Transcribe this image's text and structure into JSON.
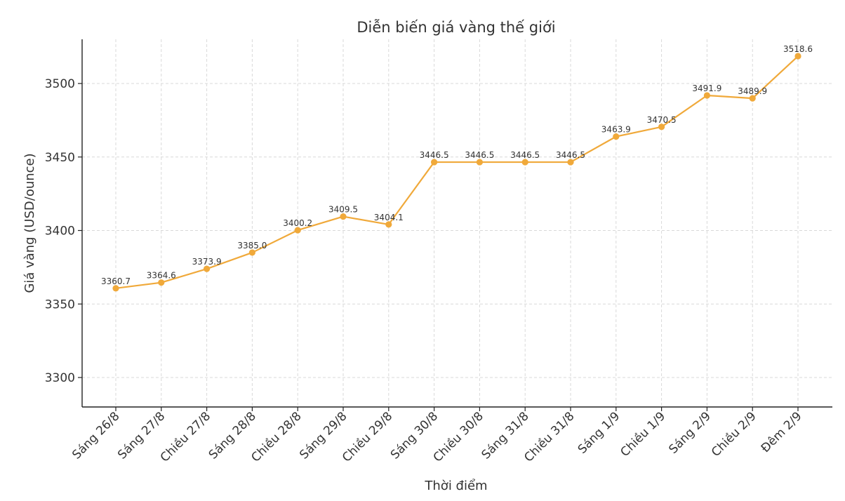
{
  "chart_data": {
    "type": "line",
    "title": "Diễn biến giá vàng thế giới",
    "xlabel": "Thời điểm",
    "ylabel": "Giá vàng (USD/ounce)",
    "categories": [
      "Sáng 26/8",
      "Sáng 27/8",
      "Chiều 27/8",
      "Sáng 28/8",
      "Chiều 28/8",
      "Sáng 29/8",
      "Chiều 29/8",
      "Sáng 30/8",
      "Chiều 30/8",
      "Sáng 31/8",
      "Chiều 31/8",
      "Sáng 1/9",
      "Chiều 1/9",
      "Sáng 2/9",
      "Chiều 2/9",
      "Đêm 2/9"
    ],
    "values": [
      3360.7,
      3364.6,
      3373.9,
      3385.0,
      3400.2,
      3409.5,
      3404.1,
      3446.5,
      3446.5,
      3446.5,
      3446.5,
      3463.9,
      3470.5,
      3491.9,
      3489.9,
      3518.6
    ],
    "data_labels": [
      "3360.7",
      "3364.6",
      "3373.9",
      "3385.0",
      "3400.2",
      "3409.5",
      "3404.1",
      "3446.5",
      "3446.5",
      "3446.5",
      "3446.5",
      "3463.9",
      "3470.5",
      "3491.9",
      "3489.9",
      "3518.6"
    ],
    "yticks": [
      3300,
      3350,
      3400,
      3450,
      3500
    ],
    "ylim": [
      3280,
      3530
    ],
    "grid": true,
    "line_color": "#f0a93a"
  }
}
